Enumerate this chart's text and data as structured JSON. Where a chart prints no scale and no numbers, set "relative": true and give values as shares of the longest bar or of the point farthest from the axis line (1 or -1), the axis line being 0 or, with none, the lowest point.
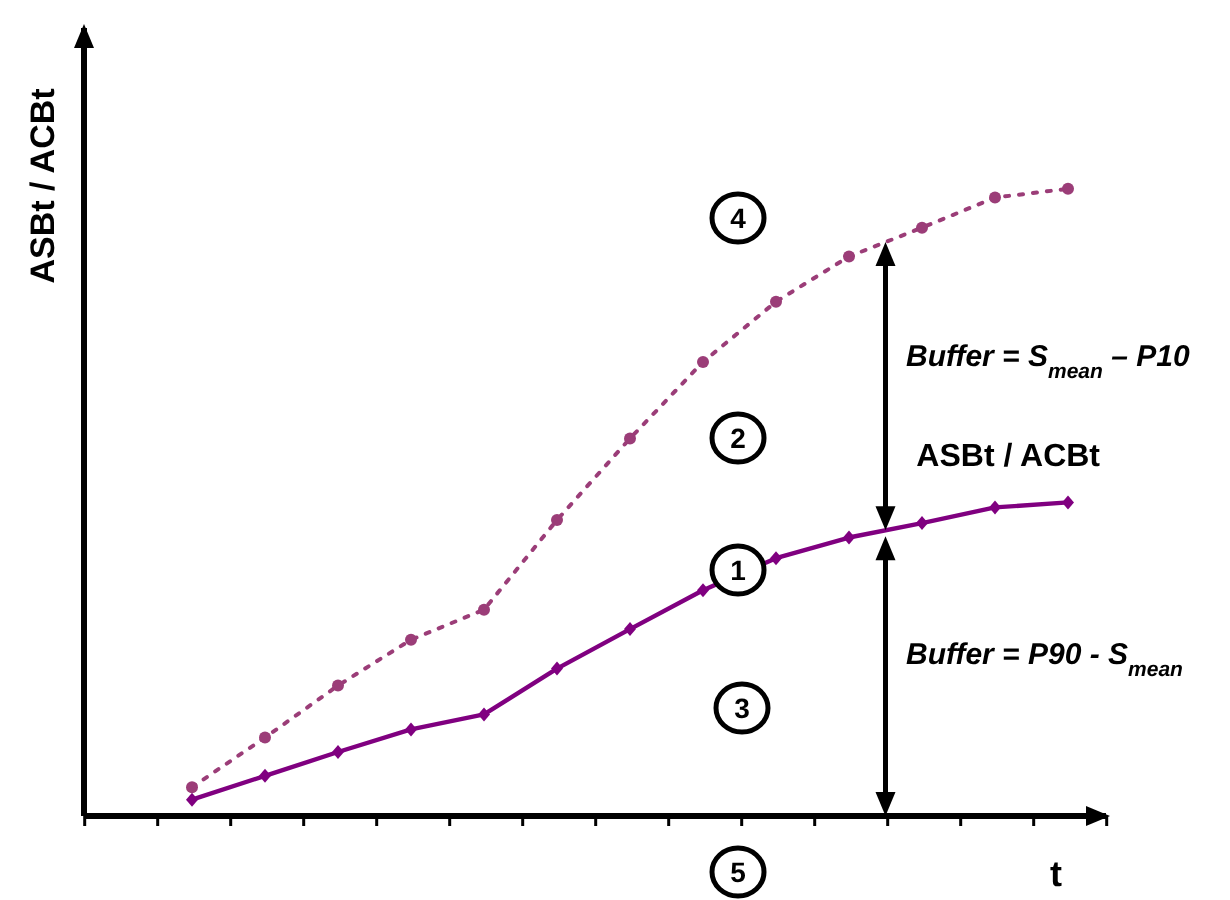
{
  "chart_data": {
    "type": "line",
    "relative": true,
    "xlabel": "t",
    "ylabel": "ASBt / ACBt",
    "categories": [
      null,
      null,
      null,
      null,
      null,
      null,
      null,
      null,
      null,
      null,
      null,
      null,
      null
    ],
    "series": [
      {
        "name": null,
        "color": "#9b3d78",
        "line_style": "dotted",
        "marker": "circle",
        "values": [
          0.046,
          0.125,
          0.208,
          0.281,
          0.329,
          0.472,
          0.602,
          0.724,
          0.82,
          0.892,
          0.938,
          0.986,
          1
        ]
      },
      {
        "name": "ASBt / ACBt",
        "color": "#800080",
        "line_style": "solid",
        "marker": "diamond",
        "values": [
          0.026,
          0.064,
          0.102,
          0.138,
          0.162,
          0.235,
          0.298,
          0.36,
          0.411,
          0.444,
          0.467,
          0.492,
          0.5
        ]
      }
    ],
    "annotations": [
      "1",
      "2",
      "3",
      "4",
      "5",
      "Buffer = S$_{mean}$ – P10",
      "Buffer = P90 - S$_{mean}$"
    ]
  }
}
